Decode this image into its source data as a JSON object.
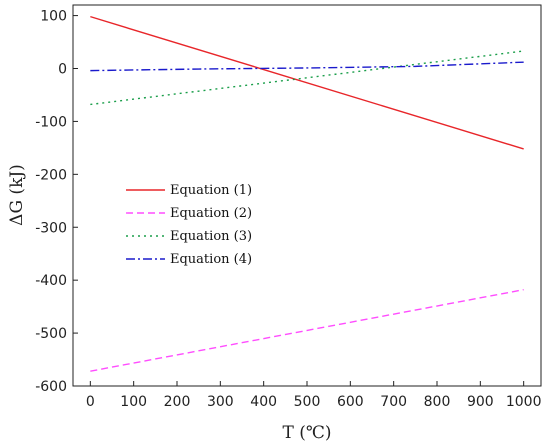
{
  "chart_data": {
    "type": "line",
    "xlabel": "T (℃)",
    "ylabel": "ΔG (kJ)",
    "xlim": [
      -40,
      1040
    ],
    "ylim": [
      -600,
      120
    ],
    "xticks": [
      0,
      100,
      200,
      300,
      400,
      500,
      600,
      700,
      800,
      900,
      1000
    ],
    "yticks": [
      100,
      0,
      -100,
      -200,
      -300,
      -400,
      -500,
      -600
    ],
    "grid": false,
    "legend_position": "left-center",
    "series": [
      {
        "name": "Equation (1)",
        "color": "#e8262a",
        "dash": "solid",
        "x": [
          0,
          1000
        ],
        "y": [
          98,
          -152
        ]
      },
      {
        "name": "Equation (2)",
        "color": "#ff4dff",
        "dash": "dashed",
        "x": [
          0,
          1000
        ],
        "y": [
          -572,
          -418
        ]
      },
      {
        "name": "Equation (3)",
        "color": "#1a9e4a",
        "dash": "dotted",
        "x": [
          0,
          1000
        ],
        "y": [
          -68,
          33
        ]
      },
      {
        "name": "Equation (4)",
        "color": "#1a1acc",
        "dash": "dashdot",
        "x": [
          0,
          250,
          500,
          750,
          1000
        ],
        "y": [
          -4,
          -1,
          1,
          4,
          12
        ]
      }
    ]
  }
}
